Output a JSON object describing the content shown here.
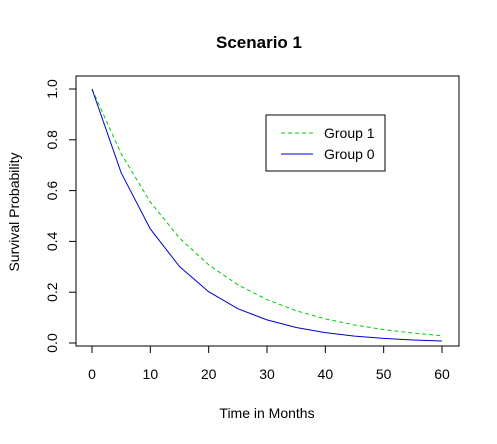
{
  "chart_data": {
    "type": "line",
    "title": "Scenario 1",
    "xlabel": "Time in Months",
    "ylabel": "Survival Probability",
    "xlim": [
      0,
      60
    ],
    "ylim": [
      0,
      1
    ],
    "x_ticks": [
      0,
      10,
      20,
      30,
      40,
      50,
      60
    ],
    "y_ticks": [
      0.0,
      0.2,
      0.4,
      0.6,
      0.8,
      1.0
    ],
    "x_tick_labels": [
      "0",
      "10",
      "20",
      "30",
      "40",
      "50",
      "60"
    ],
    "y_tick_labels": [
      "0.0",
      "0.2",
      "0.4",
      "0.6",
      "0.8",
      "1.0"
    ],
    "grid": false,
    "legend_position": "top-right",
    "x": [
      0,
      5,
      10,
      15,
      20,
      25,
      30,
      35,
      40,
      45,
      50,
      55,
      60
    ],
    "series": [
      {
        "name": "Group 1",
        "color": "#00cc00",
        "dash": "dashed",
        "values": [
          1.0,
          0.745,
          0.555,
          0.413,
          0.308,
          0.229,
          0.171,
          0.127,
          0.095,
          0.071,
          0.053,
          0.039,
          0.029
        ]
      },
      {
        "name": "Group 0",
        "color": "#0000cc",
        "dash": "solid",
        "values": [
          1.0,
          0.67,
          0.449,
          0.301,
          0.202,
          0.135,
          0.091,
          0.061,
          0.041,
          0.027,
          0.018,
          0.012,
          0.008
        ]
      }
    ]
  }
}
